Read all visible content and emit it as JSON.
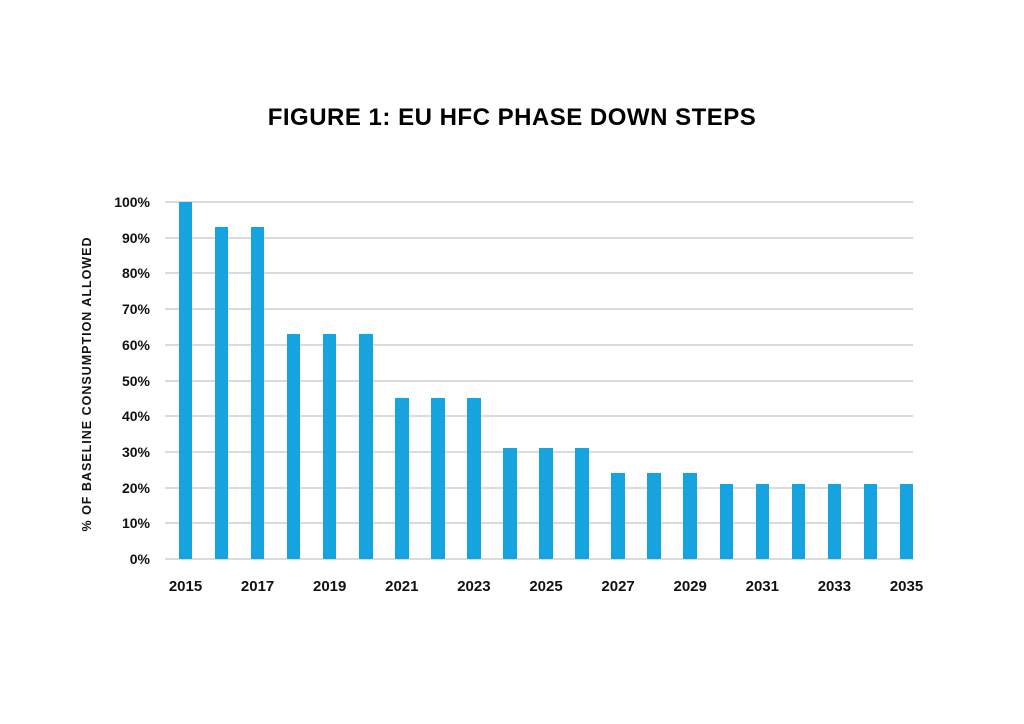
{
  "title": "FIGURE 1: EU HFC PHASE DOWN STEPS",
  "chart_data": {
    "type": "bar",
    "title": "FIGURE 1: EU HFC PHASE DOWN STEPS",
    "xlabel": "",
    "ylabel": "% OF BASELINE CONSUMPTION ALLOWED",
    "unit": "%",
    "categories": [
      2015,
      2016,
      2017,
      2018,
      2019,
      2020,
      2021,
      2022,
      2023,
      2024,
      2025,
      2026,
      2027,
      2028,
      2029,
      2030,
      2031,
      2032,
      2033,
      2034,
      2035
    ],
    "values": [
      100,
      93,
      93,
      63,
      63,
      63,
      45,
      45,
      45,
      31,
      31,
      31,
      24,
      24,
      24,
      21,
      21,
      21,
      21,
      21,
      21
    ],
    "ylim": [
      0,
      100
    ],
    "ytick_step": 10,
    "ytick_labels": [
      "0%",
      "10%",
      "20%",
      "30%",
      "40%",
      "50%",
      "60%",
      "70%",
      "80%",
      "90%",
      "100%"
    ],
    "xtick_labels_shown": [
      "2015",
      "2017",
      "2019",
      "2021",
      "2023",
      "2025",
      "2027",
      "2029",
      "2031",
      "2033",
      "2035"
    ],
    "grid": "horizontal",
    "legend": "none",
    "colors": {
      "bar": "#16A4E0",
      "gridline": "#DBDBDB",
      "text": "#111111",
      "title": "#000000",
      "background": "#FFFFFF"
    }
  }
}
